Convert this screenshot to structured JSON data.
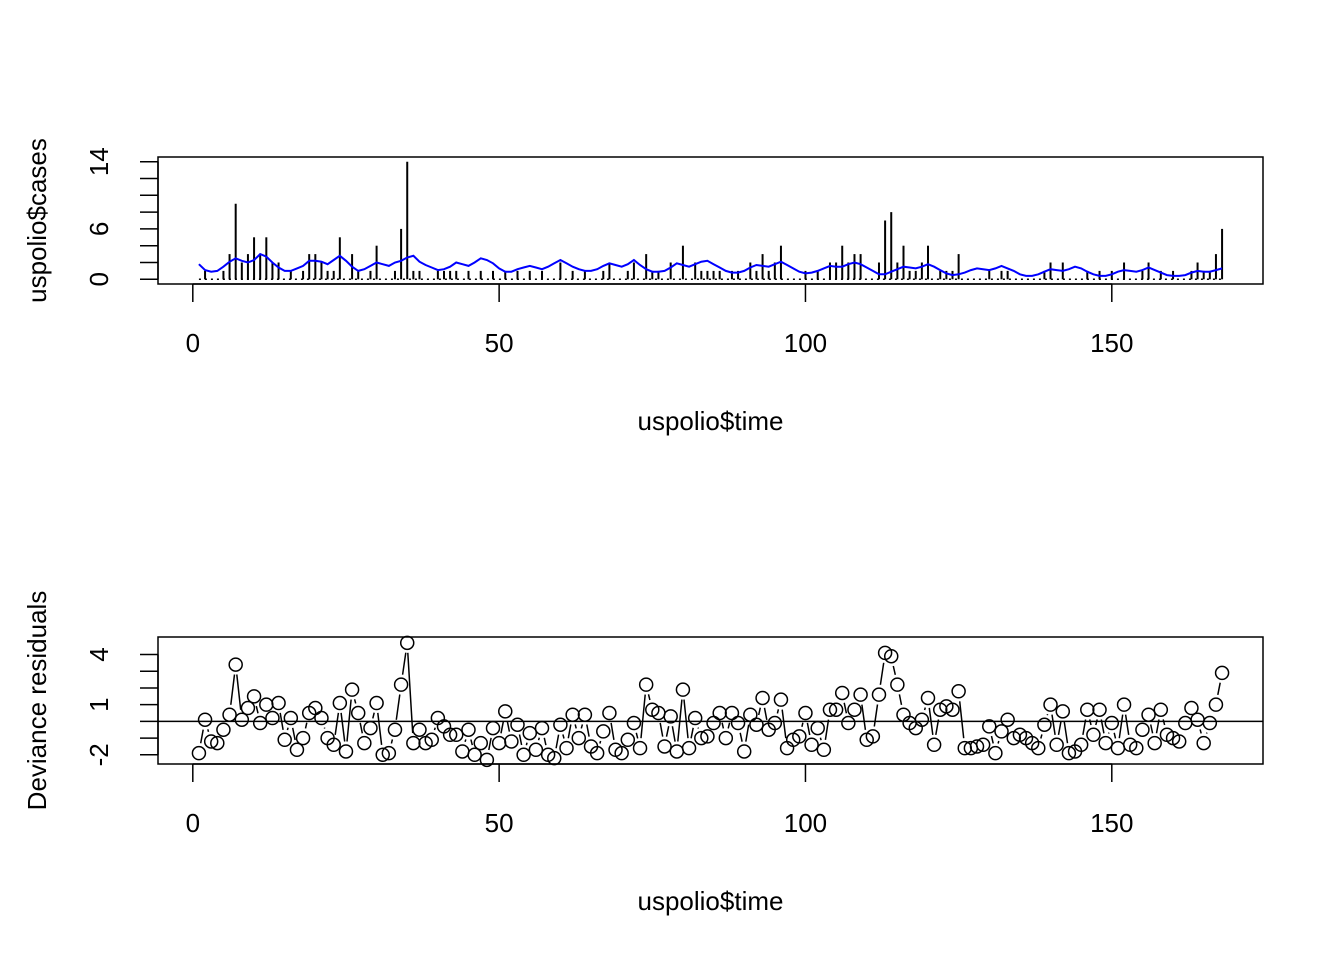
{
  "chart_data": [
    {
      "type": "spike",
      "ylabel": "uspolio$cases",
      "xlabel": "uspolio$time",
      "xlim": [
        -5.68,
        174.68
      ],
      "xticks": [
        0,
        50,
        100,
        150
      ],
      "ylim": [
        -0.56,
        14.56
      ],
      "yticks": [
        0,
        {
          "value": 2,
          "label": null
        },
        {
          "value": 4,
          "label": null
        },
        6,
        {
          "value": 8,
          "label": null
        },
        {
          "value": 10,
          "label": null
        },
        {
          "value": 12,
          "label": null
        },
        14
      ],
      "x": [
        1,
        2,
        3,
        4,
        5,
        6,
        7,
        8,
        9,
        10,
        11,
        12,
        13,
        14,
        15,
        16,
        17,
        18,
        19,
        20,
        21,
        22,
        23,
        24,
        25,
        26,
        27,
        28,
        29,
        30,
        31,
        32,
        33,
        34,
        35,
        36,
        37,
        38,
        39,
        40,
        41,
        42,
        43,
        44,
        45,
        46,
        47,
        48,
        49,
        50,
        51,
        52,
        53,
        54,
        55,
        56,
        57,
        58,
        59,
        60,
        61,
        62,
        63,
        64,
        65,
        66,
        67,
        68,
        69,
        70,
        71,
        72,
        73,
        74,
        75,
        76,
        77,
        78,
        79,
        80,
        81,
        82,
        83,
        84,
        85,
        86,
        87,
        88,
        89,
        90,
        91,
        92,
        93,
        94,
        95,
        96,
        97,
        98,
        99,
        100,
        101,
        102,
        103,
        104,
        105,
        106,
        107,
        108,
        109,
        110,
        111,
        112,
        113,
        114,
        115,
        116,
        117,
        118,
        119,
        120,
        121,
        122,
        123,
        124,
        125,
        126,
        127,
        128,
        129,
        130,
        131,
        132,
        133,
        134,
        135,
        136,
        137,
        138,
        139,
        140,
        141,
        142,
        143,
        144,
        145,
        146,
        147,
        148,
        149,
        150,
        151,
        152,
        153,
        154,
        155,
        156,
        157,
        158,
        159,
        160,
        161,
        162,
        163,
        164,
        165,
        166,
        167,
        168
      ],
      "baseline": 0,
      "series": [
        {
          "style": "spike",
          "color": "#000000",
          "values": [
            0,
            1,
            0,
            0,
            1,
            3,
            9,
            2,
            3,
            5,
            3,
            5,
            2,
            2,
            0,
            1,
            0,
            1,
            3,
            3,
            2,
            1,
            1,
            5,
            0,
            3,
            1,
            0,
            1,
            4,
            0,
            0,
            1,
            6,
            14,
            1,
            1,
            0,
            0,
            1,
            1,
            1,
            1,
            0,
            1,
            0,
            1,
            0,
            1,
            0,
            1,
            0,
            1,
            0,
            1,
            0,
            1,
            0,
            0,
            2,
            0,
            1,
            0,
            1,
            0,
            0,
            1,
            2,
            0,
            0,
            1,
            2,
            0,
            3,
            1,
            1,
            0,
            2,
            0,
            4,
            0,
            2,
            1,
            1,
            1,
            1,
            0,
            1,
            1,
            0,
            2,
            1,
            3,
            1,
            2,
            4,
            0,
            0,
            0,
            1,
            0,
            1,
            0,
            2,
            2,
            4,
            2,
            3,
            3,
            0,
            0,
            2,
            7,
            8,
            2,
            4,
            1,
            1,
            2,
            4,
            0,
            1,
            1,
            1,
            3,
            0,
            0,
            0,
            0,
            1,
            0,
            1,
            1,
            0,
            0,
            0,
            0,
            0,
            1,
            2,
            0,
            2,
            0,
            0,
            0,
            1,
            0,
            1,
            0,
            1,
            0,
            2,
            0,
            0,
            1,
            2,
            0,
            1,
            0,
            1,
            0,
            0,
            1,
            2,
            1,
            1,
            3,
            6
          ]
        },
        {
          "style": "line",
          "color": "#0000ff",
          "values": [
            1.8,
            1.1,
            0.9,
            1.0,
            1.5,
            2.1,
            2.5,
            2.2,
            2.0,
            2.3,
            3.0,
            2.7,
            2.0,
            1.4,
            1.0,
            1.0,
            1.3,
            1.6,
            2.2,
            2.2,
            2.1,
            1.8,
            2.3,
            2.8,
            2.2,
            1.5,
            1.0,
            1.2,
            1.6,
            2.0,
            1.8,
            1.6,
            2.0,
            2.2,
            2.6,
            2.8,
            2.1,
            1.7,
            1.4,
            1.1,
            1.2,
            1.5,
            2.0,
            1.8,
            1.6,
            2.0,
            2.5,
            2.3,
            1.9,
            1.3,
            0.9,
            0.9,
            1.2,
            1.4,
            1.6,
            1.4,
            1.2,
            1.5,
            1.9,
            2.3,
            1.9,
            1.5,
            1.2,
            1.0,
            1.0,
            1.2,
            1.6,
            1.9,
            1.7,
            1.5,
            1.8,
            2.3,
            1.7,
            1.2,
            0.9,
            0.9,
            1.0,
            1.4,
            1.9,
            1.7,
            1.5,
            1.8,
            2.1,
            2.2,
            1.8,
            1.4,
            1.0,
            0.8,
            0.8,
            1.0,
            1.4,
            1.7,
            1.6,
            1.5,
            1.8,
            2.1,
            1.7,
            1.3,
            0.9,
            0.7,
            0.8,
            1.0,
            1.3,
            1.6,
            1.5,
            1.5,
            1.8,
            2.0,
            1.8,
            1.4,
            1.0,
            0.6,
            0.6,
            0.9,
            1.2,
            1.5,
            1.4,
            1.3,
            1.5,
            1.8,
            1.5,
            1.1,
            0.7,
            0.5,
            0.6,
            0.8,
            1.1,
            1.3,
            1.2,
            1.1,
            1.3,
            1.6,
            1.3,
            1.0,
            0.6,
            0.4,
            0.4,
            0.6,
            0.9,
            1.2,
            1.1,
            1.0,
            1.2,
            1.5,
            1.3,
            0.9,
            0.6,
            0.4,
            0.4,
            0.6,
            0.9,
            1.1,
            1.0,
            0.9,
            1.1,
            1.4,
            1.1,
            0.8,
            0.5,
            0.4,
            0.4,
            0.5,
            0.8,
            1.0,
            0.9,
            0.9,
            1.1,
            1.3
          ]
        }
      ]
    },
    {
      "type": "scatter",
      "ylabel": "Deviance residuals",
      "xlabel": "uspolio$time",
      "xlim": [
        -5.68,
        174.68
      ],
      "xticks": [
        0,
        50,
        100,
        150
      ],
      "ylim": [
        -2.55,
        5.05
      ],
      "yticks": [
        -2,
        {
          "value": -1,
          "label": null
        },
        {
          "value": 0,
          "label": null
        },
        1,
        {
          "value": 2,
          "label": null
        },
        {
          "value": 3,
          "label": null
        },
        4
      ],
      "reference_line": 0,
      "color": "#000000",
      "x": [
        1,
        2,
        3,
        4,
        5,
        6,
        7,
        8,
        9,
        10,
        11,
        12,
        13,
        14,
        15,
        16,
        17,
        18,
        19,
        20,
        21,
        22,
        23,
        24,
        25,
        26,
        27,
        28,
        29,
        30,
        31,
        32,
        33,
        34,
        35,
        36,
        37,
        38,
        39,
        40,
        41,
        42,
        43,
        44,
        45,
        46,
        47,
        48,
        49,
        50,
        51,
        52,
        53,
        54,
        55,
        56,
        57,
        58,
        59,
        60,
        61,
        62,
        63,
        64,
        65,
        66,
        67,
        68,
        69,
        70,
        71,
        72,
        73,
        74,
        75,
        76,
        77,
        78,
        79,
        80,
        81,
        82,
        83,
        84,
        85,
        86,
        87,
        88,
        89,
        90,
        91,
        92,
        93,
        94,
        95,
        96,
        97,
        98,
        99,
        100,
        101,
        102,
        103,
        104,
        105,
        106,
        107,
        108,
        109,
        110,
        111,
        112,
        113,
        114,
        115,
        116,
        117,
        118,
        119,
        120,
        121,
        122,
        123,
        124,
        125,
        126,
        127,
        128,
        129,
        130,
        131,
        132,
        133,
        134,
        135,
        136,
        137,
        138,
        139,
        140,
        141,
        142,
        143,
        144,
        145,
        146,
        147,
        148,
        149,
        150,
        151,
        152,
        153,
        154,
        155,
        156,
        157,
        158,
        159,
        160,
        161,
        162,
        163,
        164,
        165,
        166,
        167,
        168
      ],
      "values": [
        -1.9,
        0.1,
        -1.2,
        -1.3,
        -0.5,
        0.4,
        3.4,
        0.1,
        0.8,
        1.5,
        -0.1,
        1.0,
        0.2,
        1.1,
        -1.1,
        0.2,
        -1.7,
        -1.0,
        0.5,
        0.8,
        0.2,
        -1.0,
        -1.4,
        1.1,
        -1.8,
        1.9,
        0.5,
        -1.3,
        -0.4,
        1.1,
        -2.0,
        -1.9,
        -0.5,
        2.2,
        4.7,
        -1.3,
        -0.5,
        -1.3,
        -1.1,
        0.2,
        -0.3,
        -0.8,
        -0.8,
        -1.8,
        -0.5,
        -2.0,
        -1.3,
        -2.3,
        -0.4,
        -1.3,
        0.6,
        -1.2,
        -0.2,
        -2.0,
        -0.7,
        -1.7,
        -0.4,
        -2.0,
        -2.2,
        -0.2,
        -1.6,
        0.4,
        -1.0,
        0.4,
        -1.5,
        -1.9,
        -0.6,
        0.5,
        -1.7,
        -1.9,
        -1.1,
        -0.1,
        -1.6,
        2.2,
        0.7,
        0.5,
        -1.5,
        0.3,
        -1.8,
        1.9,
        -1.6,
        0.2,
        -1.0,
        -0.9,
        -0.1,
        0.5,
        -1.0,
        0.5,
        -0.1,
        -1.8,
        0.4,
        -0.2,
        1.4,
        -0.5,
        -0.1,
        1.3,
        -1.6,
        -1.1,
        -0.9,
        0.5,
        -1.4,
        -0.4,
        -1.7,
        0.7,
        0.7,
        1.7,
        -0.1,
        0.7,
        1.6,
        -1.1,
        -0.9,
        1.6,
        4.1,
        3.9,
        2.2,
        0.4,
        -0.1,
        -0.4,
        0.1,
        1.4,
        -1.4,
        0.7,
        0.9,
        0.7,
        1.8,
        -1.6,
        -1.6,
        -1.5,
        -1.4,
        -0.3,
        -1.9,
        -0.6,
        0.1,
        -1.0,
        -0.8,
        -1.0,
        -1.3,
        -1.6,
        -0.2,
        1.0,
        -1.4,
        0.6,
        -1.9,
        -1.8,
        -1.4,
        0.7,
        -0.8,
        0.7,
        -1.3,
        -0.1,
        -1.6,
        1.0,
        -1.4,
        -1.6,
        -0.5,
        0.4,
        -1.3,
        0.7,
        -0.8,
        -1.0,
        -1.2,
        -0.1,
        0.8,
        0.1,
        -1.3,
        -0.1,
        1.0,
        2.9
      ]
    }
  ]
}
